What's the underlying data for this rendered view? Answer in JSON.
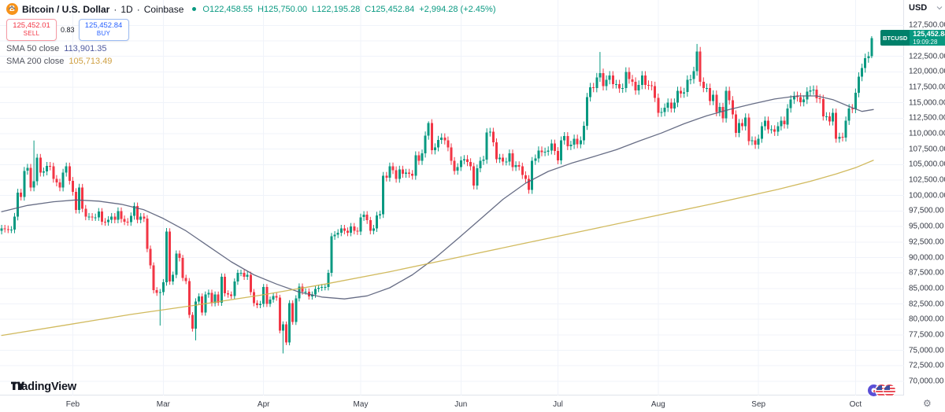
{
  "header": {
    "symbol_title": "Bitcoin / U.S. Dollar",
    "separator": "·",
    "interval": "1D",
    "exchange": "Coinbase",
    "symbol_icon_letter": "B",
    "ohlc": {
      "o_label": "O",
      "o": "122,458.55",
      "h_label": "H",
      "h": "125,750.00",
      "l_label": "L",
      "l": "122,195.28",
      "c_label": "C",
      "c": "125,452.84",
      "change": "+2,994.28 (+2.45%)",
      "color": "#089981"
    },
    "sell_button": {
      "price": "125,452.01",
      "label": "SELL",
      "color": "#f23645"
    },
    "spread": "0.83",
    "buy_button": {
      "price": "125,452.84",
      "label": "BUY",
      "color": "#2962ff"
    },
    "indicators": [
      {
        "name": "SMA 50 close",
        "value": "113,901.35",
        "color": "#4f5a9e"
      },
      {
        "name": "SMA 200 close",
        "value": "105,713.49",
        "color": "#cfa043"
      }
    ]
  },
  "price_axis": {
    "currency": "USD",
    "tick_prices": [
      127500,
      125000,
      122500,
      120000,
      117500,
      115000,
      112500,
      110000,
      107500,
      105000,
      102500,
      100000,
      97500,
      95000,
      92500,
      90000,
      87500,
      85000,
      82500,
      80000,
      77500,
      75000,
      72500,
      70000
    ],
    "last_price_label": {
      "symbol": "BTCUSD",
      "price": "125,452.84",
      "countdown": "19:09:28",
      "bg": "#089981"
    }
  },
  "time_axis": {
    "month_ticks": [
      {
        "label": "Feb",
        "day": 22
      },
      {
        "label": "Mar",
        "day": 50
      },
      {
        "label": "Apr",
        "day": 81
      },
      {
        "label": "May",
        "day": 111
      },
      {
        "label": "Jun",
        "day": 142
      },
      {
        "label": "Jul",
        "day": 172
      },
      {
        "label": "Aug",
        "day": 203
      },
      {
        "label": "Sep",
        "day": 234
      },
      {
        "label": "Oct",
        "day": 264
      }
    ]
  },
  "footer": {
    "logo_text": "TradingView"
  },
  "icons": {
    "gear": "⚙"
  },
  "colors": {
    "up": "#089981",
    "down": "#f23645",
    "grid": "#f0f3fa",
    "sma50_line": "#565d78",
    "sma200_line": "#ccb24d",
    "buy": "#2962ff",
    "sell": "#f23645",
    "tag_bg": "#089981"
  },
  "chart_data": {
    "type": "candlestick",
    "title": "Bitcoin / U.S. Dollar",
    "symbol": "BTCUSD",
    "interval": "1D",
    "exchange": "Coinbase",
    "date_range": "Jan 10 - Oct 6",
    "units": "USD, values stored in thousands",
    "ylim": [
      67.7,
      131.6
    ],
    "x_slots": 279.5,
    "first_open": 94.3,
    "closes": [
      94.7,
      94.6,
      94.5,
      94.5,
      96.6,
      100.5,
      99.8,
      104.0,
      104.5,
      101.3,
      102.3,
      106.1,
      103.7,
      103.9,
      104.8,
      104.7,
      102.7,
      102.1,
      101.3,
      103.7,
      104.7,
      102.4,
      100.6,
      97.7,
      101.3,
      97.9,
      96.6,
      96.6,
      96.5,
      96.5,
      97.4,
      95.8,
      95.7,
      96.1,
      96.6,
      96.1,
      97.5,
      96.2,
      95.8,
      95.7,
      96.7,
      98.3,
      96.1,
      96.6,
      96.3,
      91.4,
      88.7,
      84.7,
      84.3,
      84.4,
      86.0,
      94.2,
      86.1,
      87.2,
      90.6,
      89.9,
      86.7,
      86.2,
      80.7,
      78.5,
      82.9,
      83.7,
      81.1,
      84.0,
      84.3,
      82.6,
      84.0,
      82.7,
      86.9,
      84.2,
      84.0,
      83.8,
      86.1,
      87.5,
      87.5,
      86.9,
      87.2,
      84.4,
      82.6,
      82.3,
      82.5,
      85.2,
      82.5,
      83.2,
      83.8,
      83.5,
      78.2,
      79.2,
      76.3,
      82.6,
      79.6,
      83.4,
      85.3,
      84.5,
      84.5,
      83.7,
      84.0,
      84.9,
      85.1,
      85.2,
      85.2,
      87.5,
      93.4,
      93.7,
      94.0,
      94.7,
      94.3,
      94.0,
      95.0,
      94.3,
      94.2,
      96.5,
      96.9,
      96.0,
      94.3,
      94.7,
      96.8,
      97.0,
      103.2,
      102.9,
      104.7,
      104.1,
      102.7,
      104.2,
      103.5,
      103.7,
      103.5,
      103.2,
      106.5,
      105.6,
      106.8,
      109.7,
      111.7,
      107.3,
      107.8,
      109.0,
      109.4,
      108.9,
      107.8,
      105.6,
      104.0,
      104.6,
      105.7,
      105.9,
      105.4,
      104.7,
      101.6,
      104.4,
      105.6,
      105.8,
      110.2,
      110.3,
      108.6,
      105.9,
      106.1,
      105.5,
      105.5,
      106.8,
      104.6,
      104.9,
      104.7,
      103.3,
      102.7,
      100.9,
      105.6,
      106.0,
      107.3,
      107.0,
      107.1,
      107.3,
      108.4,
      107.2,
      105.7,
      108.9,
      109.6,
      108.0,
      108.2,
      109.2,
      108.3,
      108.9,
      111.3,
      115.9,
      117.5,
      117.4,
      119.1,
      119.8,
      117.7,
      118.7,
      119.4,
      118.0,
      118.0,
      117.3,
      117.4,
      120.0,
      118.8,
      118.4,
      117.0,
      117.9,
      119.4,
      117.9,
      117.8,
      117.7,
      115.8,
      113.4,
      113.5,
      114.2,
      115.0,
      114.1,
      115.0,
      116.9,
      116.5,
      116.7,
      118.7,
      118.8,
      120.1,
      123.3,
      118.4,
      117.4,
      117.4,
      115.3,
      116.3,
      113.5,
      114.3,
      112.5,
      116.9,
      115.4,
      113.1,
      110.1,
      111.7,
      111.2,
      112.6,
      108.8,
      108.9,
      108.2,
      109.2,
      111.2,
      112.1,
      110.7,
      110.7,
      110.3,
      111.2,
      112.1,
      111.5,
      114.1,
      115.5,
      116.1,
      115.9,
      115.1,
      115.5,
      116.8,
      117.0,
      117.1,
      115.7,
      115.6,
      112.8,
      112.8,
      112.0,
      113.4,
      109.2,
      109.5,
      109.4,
      112.1,
      114.1,
      114.0,
      116.6,
      119.2,
      120.6,
      122.2,
      122.5,
      125.45
    ],
    "wick_pct": 0.006,
    "overrides": {
      "10": {
        "h": 108.9
      },
      "49": {
        "l": 79.0
      },
      "60": {
        "l": 76.6
      },
      "87": {
        "l": 74.5
      },
      "132": {
        "h": 112.0
      },
      "185": {
        "h": 123.2
      },
      "215": {
        "h": 124.5
      },
      "269": {
        "h": 125.75,
        "l": 122.2
      }
    },
    "up_color": "#089981",
    "down_color": "#f23645",
    "series": [
      {
        "name": "SMA 50 close",
        "color": "#565d78",
        "current": 113901.35,
        "points": [
          [
            0,
            97.4
          ],
          [
            8,
            98.4
          ],
          [
            16,
            99.0
          ],
          [
            23,
            99.3
          ],
          [
            30,
            99.1
          ],
          [
            37,
            98.6
          ],
          [
            44,
            97.7
          ],
          [
            50,
            96.3
          ],
          [
            57,
            94.3
          ],
          [
            64,
            91.8
          ],
          [
            71,
            89.3
          ],
          [
            78,
            87.2
          ],
          [
            85,
            85.7
          ],
          [
            92,
            84.4
          ],
          [
            99,
            83.6
          ],
          [
            106,
            83.3
          ],
          [
            113,
            83.8
          ],
          [
            120,
            85.1
          ],
          [
            127,
            87.2
          ],
          [
            134,
            89.9
          ],
          [
            141,
            93.0
          ],
          [
            148,
            96.2
          ],
          [
            155,
            99.4
          ],
          [
            162,
            102.0
          ],
          [
            169,
            103.9
          ],
          [
            176,
            105.2
          ],
          [
            183,
            106.3
          ],
          [
            190,
            107.4
          ],
          [
            197,
            108.8
          ],
          [
            204,
            110.1
          ],
          [
            211,
            111.6
          ],
          [
            218,
            112.9
          ],
          [
            225,
            113.9
          ],
          [
            232,
            114.8
          ],
          [
            239,
            115.6
          ],
          [
            246,
            116.1
          ],
          [
            252,
            116.1
          ],
          [
            257,
            115.5
          ],
          [
            262,
            114.4
          ],
          [
            266,
            113.6
          ],
          [
            269.5,
            113.9
          ]
        ]
      },
      {
        "name": "SMA 200 close",
        "color": "#ccb24d",
        "current": 105713.49,
        "points": [
          [
            0,
            77.4
          ],
          [
            20,
            79.1
          ],
          [
            40,
            80.8
          ],
          [
            60,
            82.3
          ],
          [
            80,
            83.9
          ],
          [
            100,
            85.7
          ],
          [
            120,
            87.7
          ],
          [
            140,
            89.9
          ],
          [
            160,
            92.1
          ],
          [
            180,
            94.3
          ],
          [
            200,
            96.5
          ],
          [
            220,
            98.7
          ],
          [
            240,
            101.0
          ],
          [
            250,
            102.3
          ],
          [
            258,
            103.5
          ],
          [
            264,
            104.5
          ],
          [
            269.5,
            105.7
          ]
        ]
      }
    ]
  }
}
